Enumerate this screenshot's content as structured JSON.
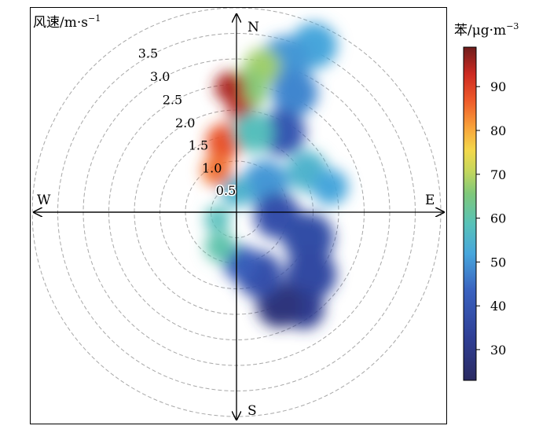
{
  "chart_data": {
    "type": "polar-heatmap",
    "radial_axis": {
      "label_prefix": "风速/m·s",
      "label_exp": "−1",
      "ticks": [
        0.5,
        1.0,
        1.5,
        2.0,
        2.5,
        3.0,
        3.5
      ],
      "tick_labels": [
        "0.5",
        "1.0",
        "1.5",
        "2.0",
        "2.5",
        "3.0",
        "3.5"
      ],
      "range": [
        0,
        4.0
      ]
    },
    "directions": {
      "north": "N",
      "south": "S",
      "east": "E",
      "west": "W"
    },
    "colorbar": {
      "label_prefix": "苯/μg·m",
      "label_exp": "−3",
      "range": [
        23,
        99
      ],
      "ticks": [
        30,
        40,
        50,
        60,
        70,
        80,
        90
      ],
      "tick_labels": [
        "30",
        "40",
        "50",
        "60",
        "70",
        "80",
        "90"
      ]
    },
    "blobs": [
      {
        "dir_deg": 25,
        "ws": 3.6,
        "size": 0.45,
        "value": 52
      },
      {
        "dir_deg": 18,
        "ws": 3.1,
        "size": 0.5,
        "value": 50
      },
      {
        "dir_deg": 10,
        "ws": 2.9,
        "size": 0.35,
        "value": 68
      },
      {
        "dir_deg": 26,
        "ws": 2.6,
        "size": 0.45,
        "value": 48
      },
      {
        "dir_deg": 30,
        "ws": 1.8,
        "size": 0.45,
        "value": 40
      },
      {
        "dir_deg": 5,
        "ws": 2.4,
        "size": 0.4,
        "value": 66
      },
      {
        "dir_deg": 2,
        "ws": 2.0,
        "size": 0.25,
        "value": 94
      },
      {
        "dir_deg": -3,
        "ws": 2.45,
        "size": 0.3,
        "value": 95
      },
      {
        "dir_deg": -10,
        "ws": 1.4,
        "size": 0.35,
        "value": 88
      },
      {
        "dir_deg": -25,
        "ws": 0.9,
        "size": 0.3,
        "value": 85
      },
      {
        "dir_deg": 12,
        "ws": 1.6,
        "size": 0.4,
        "value": 58
      },
      {
        "dir_deg": 60,
        "ws": 1.6,
        "size": 0.4,
        "value": 55
      },
      {
        "dir_deg": 75,
        "ws": 1.9,
        "size": 0.35,
        "value": 52
      },
      {
        "dir_deg": 45,
        "ws": 0.8,
        "size": 0.45,
        "value": 50
      },
      {
        "dir_deg": 95,
        "ws": 0.8,
        "size": 0.45,
        "value": 38
      },
      {
        "dir_deg": 110,
        "ws": 1.5,
        "size": 0.5,
        "value": 37
      },
      {
        "dir_deg": 130,
        "ws": 1.9,
        "size": 0.5,
        "value": 36
      },
      {
        "dir_deg": 145,
        "ws": 2.3,
        "size": 0.4,
        "value": 32
      },
      {
        "dir_deg": 155,
        "ws": 2.0,
        "size": 0.45,
        "value": 28
      },
      {
        "dir_deg": 160,
        "ws": 1.3,
        "size": 0.45,
        "value": 38
      },
      {
        "dir_deg": 175,
        "ws": 1.0,
        "size": 0.35,
        "value": 42
      },
      {
        "dir_deg": 205,
        "ws": 0.75,
        "size": 0.3,
        "value": 60
      },
      {
        "dir_deg": 250,
        "ws": 0.4,
        "size": 0.25,
        "value": 58
      },
      {
        "dir_deg": 0,
        "ws": 0.4,
        "size": 0.3,
        "value": 55
      }
    ]
  }
}
